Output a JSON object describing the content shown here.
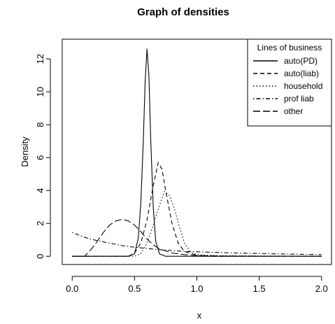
{
  "chart_data": {
    "type": "line",
    "title": "Graph of densities",
    "xlabel": "x",
    "ylabel": "Density",
    "xlim": [
      -0.08,
      2.08
    ],
    "ylim": [
      -0.5,
      13.2
    ],
    "x_ticks": [
      "0.0",
      "0.5",
      "1.0",
      "1.5",
      "2.0"
    ],
    "y_ticks": [
      "0",
      "2",
      "4",
      "6",
      "8",
      "10",
      "12"
    ],
    "legend": {
      "title": "Lines of business",
      "position": "top-right"
    },
    "series": [
      {
        "name": "auto(PD)",
        "dash": "solid",
        "points": [
          [
            0.0,
            0
          ],
          [
            0.45,
            0
          ],
          [
            0.5,
            0.15
          ],
          [
            0.53,
            1.1
          ],
          [
            0.55,
            3.2
          ],
          [
            0.57,
            7.0
          ],
          [
            0.585,
            10.6
          ],
          [
            0.6,
            12.6
          ],
          [
            0.615,
            11.0
          ],
          [
            0.63,
            7.0
          ],
          [
            0.65,
            3.0
          ],
          [
            0.67,
            0.9
          ],
          [
            0.7,
            0.15
          ],
          [
            0.75,
            0
          ],
          [
            2.0,
            0
          ]
        ]
      },
      {
        "name": "auto(liab)",
        "dash": "dashed",
        "points": [
          [
            0.0,
            0
          ],
          [
            0.45,
            0
          ],
          [
            0.5,
            0.2
          ],
          [
            0.55,
            0.8
          ],
          [
            0.6,
            2.2
          ],
          [
            0.65,
            4.3
          ],
          [
            0.69,
            5.7
          ],
          [
            0.72,
            5.3
          ],
          [
            0.75,
            4.0
          ],
          [
            0.8,
            2.0
          ],
          [
            0.85,
            0.8
          ],
          [
            0.9,
            0.3
          ],
          [
            1.0,
            0.05
          ],
          [
            1.1,
            0
          ],
          [
            2.0,
            0
          ]
        ]
      },
      {
        "name": "household",
        "dash": "dotted",
        "points": [
          [
            0.0,
            0
          ],
          [
            0.5,
            0
          ],
          [
            0.55,
            0.15
          ],
          [
            0.6,
            0.8
          ],
          [
            0.65,
            1.9
          ],
          [
            0.7,
            3.1
          ],
          [
            0.74,
            3.95
          ],
          [
            0.78,
            3.7
          ],
          [
            0.82,
            2.9
          ],
          [
            0.86,
            1.8
          ],
          [
            0.9,
            0.8
          ],
          [
            0.95,
            0.25
          ],
          [
            1.0,
            0.1
          ],
          [
            1.2,
            0.03
          ],
          [
            2.0,
            0
          ]
        ]
      },
      {
        "name": "prof liab",
        "dash": "dotdash",
        "points": [
          [
            0.0,
            1.45
          ],
          [
            0.1,
            1.15
          ],
          [
            0.2,
            0.95
          ],
          [
            0.3,
            0.8
          ],
          [
            0.4,
            0.65
          ],
          [
            0.5,
            0.55
          ],
          [
            0.7,
            0.4
          ],
          [
            0.9,
            0.3
          ],
          [
            1.1,
            0.25
          ],
          [
            1.3,
            0.2
          ],
          [
            1.5,
            0.17
          ],
          [
            1.7,
            0.14
          ],
          [
            2.0,
            0.1
          ]
        ]
      },
      {
        "name": "other",
        "dash": "longdash",
        "points": [
          [
            0.0,
            0
          ],
          [
            0.1,
            0
          ],
          [
            0.15,
            0.4
          ],
          [
            0.2,
            0.9
          ],
          [
            0.25,
            1.45
          ],
          [
            0.3,
            1.9
          ],
          [
            0.35,
            2.15
          ],
          [
            0.4,
            2.25
          ],
          [
            0.45,
            2.15
          ],
          [
            0.5,
            1.9
          ],
          [
            0.55,
            1.5
          ],
          [
            0.6,
            1.05
          ],
          [
            0.65,
            0.7
          ],
          [
            0.7,
            0.45
          ],
          [
            0.8,
            0.2
          ],
          [
            0.9,
            0.1
          ],
          [
            1.0,
            0.05
          ],
          [
            1.2,
            0.02
          ],
          [
            1.5,
            0.01
          ],
          [
            2.0,
            0.01
          ]
        ]
      }
    ]
  }
}
